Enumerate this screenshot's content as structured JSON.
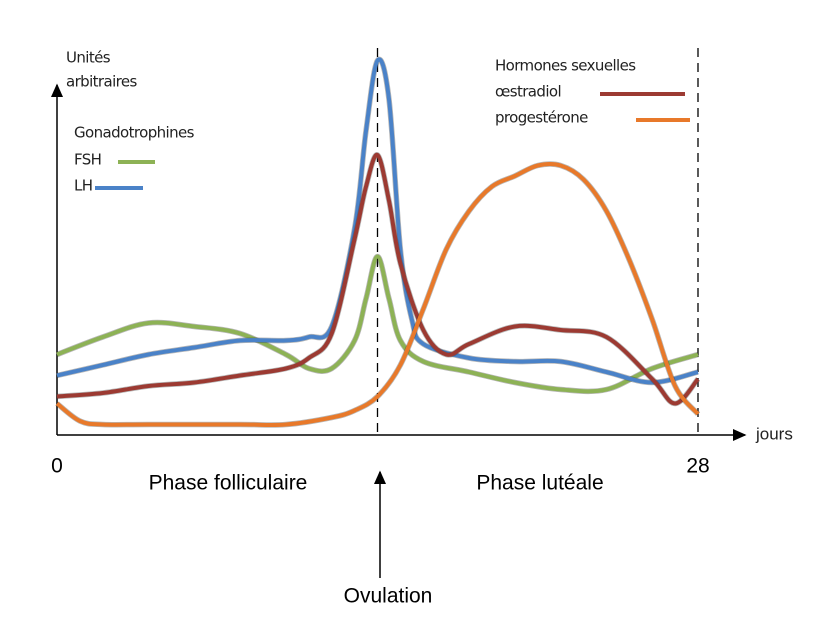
{
  "chart_data": {
    "type": "line",
    "y_label": [
      "Unités",
      "arbitraires"
    ],
    "x_label": "jours",
    "xlim": [
      0,
      28
    ],
    "ylim": [
      0,
      110
    ],
    "xticks": [
      0,
      28
    ],
    "vlines": [
      14,
      28
    ],
    "annotations": [
      "Phase folliculaire",
      "Phase lutéale",
      "Ovulation"
    ],
    "series_groups": [
      {
        "title": "Gonadotrophines",
        "series": [
          {
            "name": "FSH",
            "color": "#8db255",
            "x": [
              0,
              2,
              4,
              6,
              8,
              10,
              11,
              12,
              13,
              13.5,
              14,
              14.5,
              15,
              16,
              18,
              20,
              22,
              24,
              26,
              28
            ],
            "values": [
              23,
              28,
              32,
              31,
              29,
              23,
              19,
              19,
              27,
              39,
              51,
              39,
              27,
              21,
              18,
              15,
              13,
              13,
              19,
              23
            ]
          },
          {
            "name": "LH",
            "color": "#4a82c8",
            "x": [
              0,
              2,
              4,
              6,
              8,
              10,
              11,
              12,
              13,
              13.5,
              14,
              14.5,
              15,
              15.5,
              16,
              18,
              20,
              22,
              24,
              26,
              28
            ],
            "values": [
              17,
              20,
              23,
              25,
              27,
              27,
              28,
              31,
              59,
              87,
              107,
              96,
              53,
              33,
              26,
              22,
              21,
              21,
              18,
              15,
              18
            ]
          }
        ]
      },
      {
        "title": "Hormones sexuelles",
        "series": [
          {
            "name": "œstradiol",
            "color": "#9c3a32",
            "x": [
              0,
              2,
              4,
              6,
              8,
              10,
              11,
              12,
              13,
              13.5,
              14,
              14.5,
              15,
              16,
              17,
              18,
              20,
              22,
              24,
              26,
              27,
              28
            ],
            "values": [
              11,
              12,
              14,
              15,
              17,
              19,
              22,
              29,
              56,
              71,
              80,
              67,
              49,
              30,
              23,
              26,
              31,
              30,
              28,
              16,
              9,
              16
            ]
          },
          {
            "name": "progestérone",
            "color": "#e8792a",
            "x": [
              0,
              1,
              2,
              4,
              8,
              10,
              12,
              13,
              14,
              15,
              16,
              17,
              18,
              19,
              20,
              21,
              22,
              23,
              24,
              25,
              26,
              27,
              28
            ],
            "values": [
              9,
              4,
              3,
              3,
              3,
              3,
              5,
              7,
              11,
              20,
              36,
              53,
              64,
              71,
              74,
              77,
              77,
              73,
              64,
              50,
              33,
              14,
              6
            ]
          }
        ]
      }
    ]
  }
}
